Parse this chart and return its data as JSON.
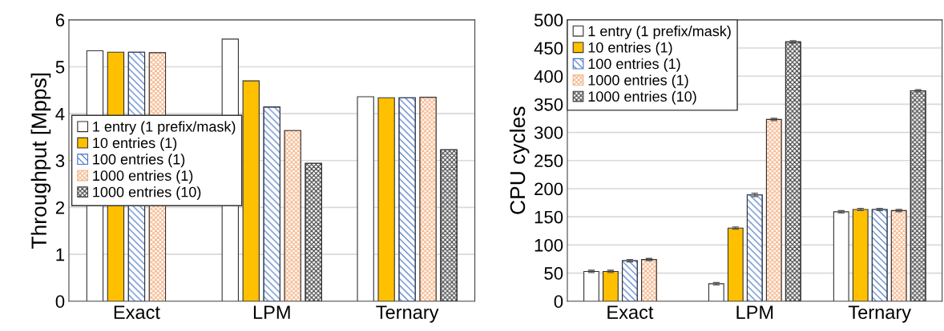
{
  "chart_data": [
    {
      "type": "bar",
      "ylabel": "Throughput [Mpps]",
      "categories": [
        "Exact",
        "LPM",
        "Ternary"
      ],
      "ylim": [
        0,
        6
      ],
      "yticks": [
        0,
        1,
        2,
        3,
        4,
        5,
        6
      ],
      "grid": "y",
      "legend": "center left",
      "series": [
        {
          "name": "1 entry (1 prefix/mask)",
          "color": "#ffffff",
          "values": [
            5.34,
            5.59,
            4.36
          ]
        },
        {
          "name": "10 entries (1)",
          "color": "#ffc000",
          "values": [
            5.31,
            4.7,
            4.34
          ]
        },
        {
          "name": "100 entries (1)",
          "color": "#4472c4",
          "values": [
            5.31,
            4.14,
            4.34
          ]
        },
        {
          "name": "1000 entries (1)",
          "color": "#f4b183",
          "values": [
            5.3,
            3.64,
            4.35
          ]
        },
        {
          "name": "1000 entries (10)",
          "color": "#404040",
          "values": [
            null,
            2.94,
            3.23
          ]
        }
      ]
    },
    {
      "type": "bar",
      "ylabel": "CPU cycles",
      "categories": [
        "Exact",
        "LPM",
        "Ternary"
      ],
      "ylim": [
        0,
        500
      ],
      "yticks": [
        0,
        50,
        100,
        150,
        200,
        250,
        300,
        350,
        400,
        450,
        500
      ],
      "grid": "y",
      "legend": "top left",
      "series": [
        {
          "name": "1 entry (1 prefix/mask)",
          "color": "#ffffff",
          "values": [
            53,
            31,
            159
          ],
          "errors": [
            2,
            2,
            2
          ]
        },
        {
          "name": "10 entries (1)",
          "color": "#ffc000",
          "values": [
            53,
            130,
            163
          ],
          "errors": [
            2,
            2,
            2
          ]
        },
        {
          "name": "100 entries (1)",
          "color": "#4472c4",
          "values": [
            72,
            189,
            163
          ],
          "errors": [
            2,
            3,
            2
          ]
        },
        {
          "name": "1000 entries (1)",
          "color": "#f4b183",
          "values": [
            74,
            323,
            161
          ],
          "errors": [
            2,
            2,
            2
          ]
        },
        {
          "name": "1000 entries (10)",
          "color": "#404040",
          "values": [
            null,
            461,
            374
          ],
          "errors": [
            null,
            2,
            2
          ]
        }
      ]
    }
  ]
}
